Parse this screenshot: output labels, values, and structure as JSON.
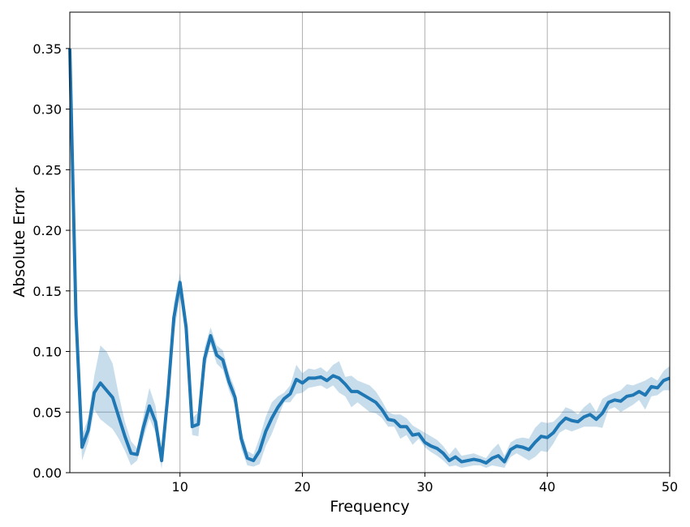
{
  "chart_data": {
    "type": "line",
    "title": "",
    "xlabel": "Frequency",
    "ylabel": "Absolute Error",
    "xlim": [
      1,
      50
    ],
    "ylim": [
      0,
      0.38
    ],
    "xticks": [
      10,
      20,
      30,
      40,
      50
    ],
    "yticks": [
      0.0,
      0.05,
      0.1,
      0.15,
      0.2,
      0.25,
      0.3,
      0.35
    ],
    "xtick_labels": [
      "10",
      "20",
      "30",
      "40",
      "50"
    ],
    "ytick_labels": [
      "0.00",
      "0.05",
      "0.10",
      "0.15",
      "0.20",
      "0.25",
      "0.30",
      "0.35"
    ],
    "grid": true,
    "legend": "none",
    "colors": {
      "line": "#1f77b4",
      "band": "#1f77b4"
    },
    "series": [
      {
        "x": [
          1.0,
          1.5,
          2.0,
          2.5,
          3.0,
          3.5,
          4.0,
          4.5,
          5.0,
          5.5,
          6.0,
          6.5,
          7.0,
          7.5,
          8.0,
          8.5,
          9.0,
          9.5,
          10.0,
          10.5,
          11.0,
          11.5,
          12.0,
          12.5,
          13.0,
          13.5,
          14.0,
          14.5,
          15.0,
          15.5,
          16.0,
          16.5,
          17.0,
          17.5,
          18.0,
          18.5,
          19.0,
          19.5,
          20.0,
          20.5,
          21.0,
          21.5,
          22.0,
          22.5,
          23.0,
          23.5,
          24.0,
          24.5,
          25.0,
          25.5,
          26.0,
          26.5,
          27.0,
          27.5,
          28.0,
          28.5,
          29.0,
          29.5,
          30.0,
          30.5,
          31.0,
          31.5,
          32.0,
          32.5,
          33.0,
          33.5,
          34.0,
          34.5,
          35.0,
          35.5,
          36.0,
          36.5,
          37.0,
          37.5,
          38.0,
          38.5,
          39.0,
          39.5,
          40.0,
          40.5,
          41.0,
          41.5,
          42.0,
          42.5,
          43.0,
          43.5,
          44.0,
          44.5,
          45.0,
          45.5,
          46.0,
          46.5,
          47.0,
          47.5,
          48.0,
          48.5,
          49.0,
          49.5,
          50.0
        ],
        "y": [
          0.35,
          0.13,
          0.021,
          0.035,
          0.066,
          0.074,
          0.068,
          0.062,
          0.046,
          0.03,
          0.016,
          0.015,
          0.037,
          0.055,
          0.042,
          0.01,
          0.063,
          0.128,
          0.157,
          0.12,
          0.038,
          0.04,
          0.094,
          0.113,
          0.097,
          0.093,
          0.075,
          0.062,
          0.028,
          0.012,
          0.01,
          0.018,
          0.034,
          0.045,
          0.054,
          0.061,
          0.065,
          0.077,
          0.074,
          0.078,
          0.078,
          0.079,
          0.076,
          0.08,
          0.078,
          0.073,
          0.067,
          0.067,
          0.064,
          0.061,
          0.058,
          0.052,
          0.044,
          0.043,
          0.038,
          0.038,
          0.031,
          0.032,
          0.025,
          0.022,
          0.02,
          0.016,
          0.01,
          0.013,
          0.009,
          0.01,
          0.011,
          0.01,
          0.008,
          0.012,
          0.014,
          0.009,
          0.019,
          0.022,
          0.021,
          0.019,
          0.025,
          0.03,
          0.029,
          0.033,
          0.04,
          0.045,
          0.043,
          0.042,
          0.046,
          0.048,
          0.044,
          0.049,
          0.058,
          0.06,
          0.059,
          0.063,
          0.064,
          0.067,
          0.064,
          0.071,
          0.07,
          0.076,
          0.078
        ],
        "lower": [
          0.35,
          0.12,
          0.01,
          0.025,
          0.052,
          0.044,
          0.04,
          0.036,
          0.028,
          0.018,
          0.006,
          0.01,
          0.028,
          0.045,
          0.033,
          0.003,
          0.055,
          0.115,
          0.145,
          0.11,
          0.031,
          0.03,
          0.085,
          0.106,
          0.09,
          0.085,
          0.068,
          0.055,
          0.02,
          0.006,
          0.005,
          0.007,
          0.022,
          0.032,
          0.045,
          0.058,
          0.058,
          0.065,
          0.066,
          0.07,
          0.071,
          0.072,
          0.069,
          0.072,
          0.066,
          0.063,
          0.054,
          0.058,
          0.054,
          0.05,
          0.049,
          0.045,
          0.038,
          0.038,
          0.028,
          0.031,
          0.023,
          0.028,
          0.021,
          0.017,
          0.014,
          0.01,
          0.005,
          0.006,
          0.004,
          0.005,
          0.006,
          0.006,
          0.004,
          0.006,
          0.005,
          0.004,
          0.013,
          0.016,
          0.013,
          0.01,
          0.013,
          0.018,
          0.017,
          0.024,
          0.033,
          0.036,
          0.034,
          0.036,
          0.038,
          0.038,
          0.038,
          0.037,
          0.052,
          0.054,
          0.05,
          0.053,
          0.056,
          0.06,
          0.052,
          0.063,
          0.064,
          0.068,
          0.068
        ],
        "upper": [
          0.35,
          0.14,
          0.031,
          0.045,
          0.08,
          0.105,
          0.1,
          0.09,
          0.064,
          0.042,
          0.026,
          0.02,
          0.046,
          0.07,
          0.055,
          0.017,
          0.071,
          0.14,
          0.165,
          0.13,
          0.045,
          0.05,
          0.103,
          0.12,
          0.105,
          0.101,
          0.082,
          0.069,
          0.036,
          0.018,
          0.015,
          0.029,
          0.046,
          0.058,
          0.063,
          0.066,
          0.072,
          0.089,
          0.082,
          0.086,
          0.085,
          0.087,
          0.083,
          0.089,
          0.092,
          0.079,
          0.08,
          0.076,
          0.074,
          0.072,
          0.067,
          0.059,
          0.05,
          0.048,
          0.048,
          0.045,
          0.039,
          0.036,
          0.033,
          0.03,
          0.027,
          0.022,
          0.015,
          0.021,
          0.014,
          0.015,
          0.016,
          0.014,
          0.012,
          0.019,
          0.024,
          0.014,
          0.025,
          0.028,
          0.029,
          0.028,
          0.037,
          0.042,
          0.041,
          0.042,
          0.047,
          0.054,
          0.052,
          0.048,
          0.054,
          0.058,
          0.05,
          0.061,
          0.064,
          0.066,
          0.068,
          0.073,
          0.072,
          0.074,
          0.076,
          0.079,
          0.076,
          0.084,
          0.088
        ]
      }
    ]
  }
}
